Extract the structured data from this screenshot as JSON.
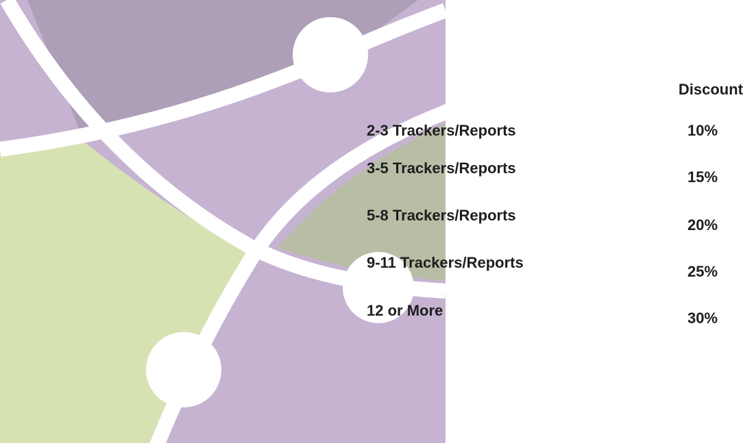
{
  "table": {
    "header": "Discount",
    "rows": [
      [
        "2-3 Trackers/Reports",
        "10%"
      ],
      [
        "3-5 Trackers/Reports",
        "15%"
      ],
      [
        "5-8 Trackers/Reports",
        "20%"
      ],
      [
        "9-11 Trackers/Reports",
        "25%"
      ],
      [
        "12 or More",
        "30%"
      ]
    ]
  }
}
